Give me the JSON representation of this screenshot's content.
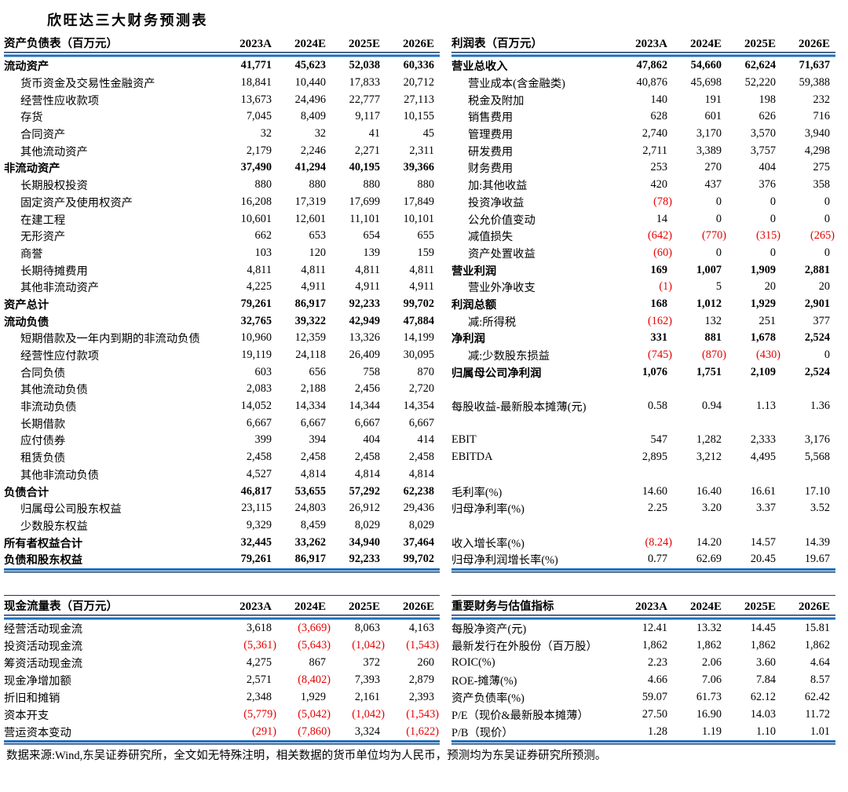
{
  "page": {
    "title": "欣旺达三大财务预测表",
    "footer": "数据来源:Wind,东吴证券研究所，全文如无特殊注明，相关数据的货币单位均为人民币，预测均为东吴证券研究所预测。"
  },
  "columns": [
    "2023A",
    "2024E",
    "2025E",
    "2026E"
  ],
  "colors": {
    "rule_blue": "#1f6fc0",
    "rule_dark": "#17375e",
    "negative_red": "#e60000",
    "text": "#000000"
  },
  "tables": {
    "balance_sheet": {
      "title": "资产负债表（百万元）",
      "rows": [
        {
          "label": "流动资产",
          "bold": true,
          "values": [
            "41,771",
            "45,623",
            "52,038",
            "60,336"
          ]
        },
        {
          "label": "货币资金及交易性金融资产",
          "indent": true,
          "values": [
            "18,841",
            "10,440",
            "17,833",
            "20,712"
          ]
        },
        {
          "label": "经营性应收款项",
          "indent": true,
          "values": [
            "13,673",
            "24,496",
            "22,777",
            "27,113"
          ]
        },
        {
          "label": "存货",
          "indent": true,
          "values": [
            "7,045",
            "8,409",
            "9,117",
            "10,155"
          ]
        },
        {
          "label": "合同资产",
          "indent": true,
          "values": [
            "32",
            "32",
            "41",
            "45"
          ]
        },
        {
          "label": "其他流动资产",
          "indent": true,
          "values": [
            "2,179",
            "2,246",
            "2,271",
            "2,311"
          ]
        },
        {
          "label": "非流动资产",
          "bold": true,
          "values": [
            "37,490",
            "41,294",
            "40,195",
            "39,366"
          ]
        },
        {
          "label": "长期股权投资",
          "indent": true,
          "values": [
            "880",
            "880",
            "880",
            "880"
          ]
        },
        {
          "label": "固定资产及使用权资产",
          "indent": true,
          "values": [
            "16,208",
            "17,319",
            "17,699",
            "17,849"
          ]
        },
        {
          "label": "在建工程",
          "indent": true,
          "values": [
            "10,601",
            "12,601",
            "11,101",
            "10,101"
          ]
        },
        {
          "label": "无形资产",
          "indent": true,
          "values": [
            "662",
            "653",
            "654",
            "655"
          ]
        },
        {
          "label": "商誉",
          "indent": true,
          "values": [
            "103",
            "120",
            "139",
            "159"
          ]
        },
        {
          "label": "长期待摊费用",
          "indent": true,
          "values": [
            "4,811",
            "4,811",
            "4,811",
            "4,811"
          ]
        },
        {
          "label": "其他非流动资产",
          "indent": true,
          "values": [
            "4,225",
            "4,911",
            "4,911",
            "4,911"
          ]
        },
        {
          "label": "资产总计",
          "bold": true,
          "values": [
            "79,261",
            "86,917",
            "92,233",
            "99,702"
          ]
        },
        {
          "label": "流动负债",
          "bold": true,
          "values": [
            "32,765",
            "39,322",
            "42,949",
            "47,884"
          ]
        },
        {
          "label": "短期借款及一年内到期的非流动负债",
          "indent": true,
          "values": [
            "10,960",
            "12,359",
            "13,326",
            "14,199"
          ]
        },
        {
          "label": "经营性应付款项",
          "indent": true,
          "values": [
            "19,119",
            "24,118",
            "26,409",
            "30,095"
          ]
        },
        {
          "label": "合同负债",
          "indent": true,
          "values": [
            "603",
            "656",
            "758",
            "870"
          ]
        },
        {
          "label": "其他流动负债",
          "indent": true,
          "values": [
            "2,083",
            "2,188",
            "2,456",
            "2,720"
          ]
        },
        {
          "label": "非流动负债",
          "indent": true,
          "values": [
            "14,052",
            "14,334",
            "14,344",
            "14,354"
          ]
        },
        {
          "label": "长期借款",
          "indent": true,
          "values": [
            "6,667",
            "6,667",
            "6,667",
            "6,667"
          ]
        },
        {
          "label": "应付债券",
          "indent": true,
          "values": [
            "399",
            "394",
            "404",
            "414"
          ]
        },
        {
          "label": "租赁负债",
          "indent": true,
          "values": [
            "2,458",
            "2,458",
            "2,458",
            "2,458"
          ]
        },
        {
          "label": "其他非流动负债",
          "indent": true,
          "values": [
            "4,527",
            "4,814",
            "4,814",
            "4,814"
          ]
        },
        {
          "label": "负债合计",
          "bold": true,
          "values": [
            "46,817",
            "53,655",
            "57,292",
            "62,238"
          ]
        },
        {
          "label": "归属母公司股东权益",
          "indent": true,
          "values": [
            "23,115",
            "24,803",
            "26,912",
            "29,436"
          ]
        },
        {
          "label": "少数股东权益",
          "indent": true,
          "values": [
            "9,329",
            "8,459",
            "8,029",
            "8,029"
          ]
        },
        {
          "label": "所有者权益合计",
          "bold": true,
          "values": [
            "32,445",
            "33,262",
            "34,940",
            "37,464"
          ]
        },
        {
          "label": "负债和股东权益",
          "bold": true,
          "values": [
            "79,261",
            "86,917",
            "92,233",
            "99,702"
          ]
        }
      ]
    },
    "income_statement": {
      "title": "利润表（百万元）",
      "rows": [
        {
          "label": "营业总收入",
          "bold": true,
          "values": [
            "47,862",
            "54,660",
            "62,624",
            "71,637"
          ]
        },
        {
          "label": "营业成本(含金融类)",
          "indent": true,
          "values": [
            "40,876",
            "45,698",
            "52,220",
            "59,388"
          ]
        },
        {
          "label": "税金及附加",
          "indent": true,
          "values": [
            "140",
            "191",
            "198",
            "232"
          ]
        },
        {
          "label": "销售费用",
          "indent": true,
          "values": [
            "628",
            "601",
            "626",
            "716"
          ]
        },
        {
          "label": "管理费用",
          "indent": true,
          "values": [
            "2,740",
            "3,170",
            "3,570",
            "3,940"
          ]
        },
        {
          "label": "研发费用",
          "indent": true,
          "values": [
            "2,711",
            "3,389",
            "3,757",
            "4,298"
          ]
        },
        {
          "label": "财务费用",
          "indent": true,
          "values": [
            "253",
            "270",
            "404",
            "275"
          ]
        },
        {
          "label": "加:其他收益",
          "indent": true,
          "values": [
            "420",
            "437",
            "376",
            "358"
          ]
        },
        {
          "label": "投资净收益",
          "indent": true,
          "values": [
            "(78)",
            "0",
            "0",
            "0"
          ]
        },
        {
          "label": "公允价值变动",
          "indent": true,
          "values": [
            "14",
            "0",
            "0",
            "0"
          ]
        },
        {
          "label": "减值损失",
          "indent": true,
          "values": [
            "(642)",
            "(770)",
            "(315)",
            "(265)"
          ]
        },
        {
          "label": "资产处置收益",
          "indent": true,
          "values": [
            "(60)",
            "0",
            "0",
            "0"
          ]
        },
        {
          "label": "营业利润",
          "bold": true,
          "values": [
            "169",
            "1,007",
            "1,909",
            "2,881"
          ]
        },
        {
          "label": "营业外净收支",
          "indent": true,
          "values": [
            "(1)",
            "5",
            "20",
            "20"
          ]
        },
        {
          "label": "利润总额",
          "bold": true,
          "values": [
            "168",
            "1,012",
            "1,929",
            "2,901"
          ]
        },
        {
          "label": "减:所得税",
          "indent": true,
          "values": [
            "(162)",
            "132",
            "251",
            "377"
          ]
        },
        {
          "label": "净利润",
          "bold": true,
          "values": [
            "331",
            "881",
            "1,678",
            "2,524"
          ]
        },
        {
          "label": "减:少数股东损益",
          "indent": true,
          "values": [
            "(745)",
            "(870)",
            "(430)",
            "0"
          ]
        },
        {
          "label": "归属母公司净利润",
          "bold": true,
          "values": [
            "1,076",
            "1,751",
            "2,109",
            "2,524"
          ]
        },
        {
          "label": "",
          "blank": true,
          "values": [
            "",
            "",
            "",
            ""
          ]
        },
        {
          "label": "每股收益-最新股本摊薄(元)",
          "values": [
            "0.58",
            "0.94",
            "1.13",
            "1.36"
          ]
        },
        {
          "label": "",
          "blank": true,
          "values": [
            "",
            "",
            "",
            ""
          ]
        },
        {
          "label": "EBIT",
          "values": [
            "547",
            "1,282",
            "2,333",
            "3,176"
          ]
        },
        {
          "label": "EBITDA",
          "values": [
            "2,895",
            "3,212",
            "4,495",
            "5,568"
          ]
        },
        {
          "label": "",
          "blank": true,
          "values": [
            "",
            "",
            "",
            ""
          ]
        },
        {
          "label": "毛利率(%)",
          "values": [
            "14.60",
            "16.40",
            "16.61",
            "17.10"
          ]
        },
        {
          "label": "归母净利率(%)",
          "values": [
            "2.25",
            "3.20",
            "3.37",
            "3.52"
          ]
        },
        {
          "label": "",
          "blank": true,
          "values": [
            "",
            "",
            "",
            ""
          ]
        },
        {
          "label": "收入增长率(%)",
          "values": [
            "(8.24)",
            "14.20",
            "14.57",
            "14.39"
          ]
        },
        {
          "label": "归母净利润增长率(%)",
          "values": [
            "0.77",
            "62.69",
            "20.45",
            "19.67"
          ]
        }
      ]
    },
    "cash_flow": {
      "title": "现金流量表（百万元）",
      "rows": [
        {
          "label": "经营活动现金流",
          "values": [
            "3,618",
            "(3,669)",
            "8,063",
            "4,163"
          ]
        },
        {
          "label": "投资活动现金流",
          "values": [
            "(5,361)",
            "(5,643)",
            "(1,042)",
            "(1,543)"
          ]
        },
        {
          "label": "筹资活动现金流",
          "values": [
            "4,275",
            "867",
            "372",
            "260"
          ]
        },
        {
          "label": "现金净增加额",
          "values": [
            "2,571",
            "(8,402)",
            "7,393",
            "2,879"
          ]
        },
        {
          "label": "折旧和摊销",
          "values": [
            "2,348",
            "1,929",
            "2,161",
            "2,393"
          ]
        },
        {
          "label": "资本开支",
          "values": [
            "(5,779)",
            "(5,042)",
            "(1,042)",
            "(1,543)"
          ]
        },
        {
          "label": "营运资本变动",
          "values": [
            "(291)",
            "(7,860)",
            "3,324",
            "(1,622)"
          ]
        }
      ]
    },
    "metrics": {
      "title": "重要财务与估值指标",
      "rows": [
        {
          "label": "每股净资产(元)",
          "values": [
            "12.41",
            "13.32",
            "14.45",
            "15.81"
          ]
        },
        {
          "label": "最新发行在外股份（百万股）",
          "values": [
            "1,862",
            "1,862",
            "1,862",
            "1,862"
          ]
        },
        {
          "label": "ROIC(%)",
          "values": [
            "2.23",
            "2.06",
            "3.60",
            "4.64"
          ]
        },
        {
          "label": "ROE-摊薄(%)",
          "values": [
            "4.66",
            "7.06",
            "7.84",
            "8.57"
          ]
        },
        {
          "label": "资产负债率(%)",
          "values": [
            "59.07",
            "61.73",
            "62.12",
            "62.42"
          ]
        },
        {
          "label": "P/E（现价&最新股本摊薄）",
          "values": [
            "27.50",
            "16.90",
            "14.03",
            "11.72"
          ]
        },
        {
          "label": "P/B（现价）",
          "values": [
            "1.28",
            "1.19",
            "1.10",
            "1.01"
          ]
        }
      ]
    }
  }
}
